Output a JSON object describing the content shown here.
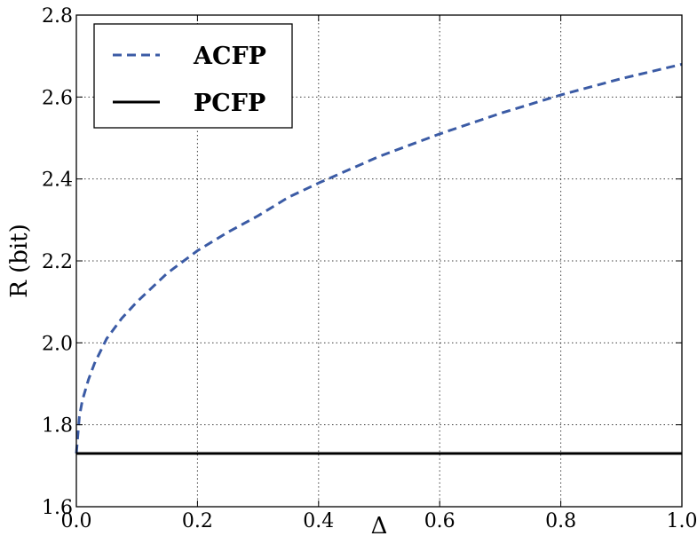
{
  "chart_data": {
    "type": "line",
    "title": "",
    "xlabel": "Δ",
    "ylabel": "R (bit)",
    "xlim": [
      0.0,
      1.0
    ],
    "ylim": [
      1.6,
      2.8
    ],
    "xticks": [
      0.0,
      0.2,
      0.4,
      0.6,
      0.8,
      1.0
    ],
    "xtick_labels": [
      "0.0",
      "0.2",
      "0.4",
      "0.6",
      "0.8",
      "1.0"
    ],
    "yticks": [
      1.6,
      1.8,
      2.0,
      2.2,
      2.4,
      2.6,
      2.8
    ],
    "ytick_labels": [
      "1.6",
      "1.8",
      "2.0",
      "2.2",
      "2.4",
      "2.6",
      "2.8"
    ],
    "grid": true,
    "legend_position": "top-left",
    "series": [
      {
        "name": "ACFP",
        "color": "#3b5ba5",
        "style": "dashed",
        "x": [
          0.0,
          0.005,
          0.01,
          0.02,
          0.03,
          0.05,
          0.075,
          0.1,
          0.15,
          0.2,
          0.25,
          0.3,
          0.35,
          0.4,
          0.5,
          0.6,
          0.7,
          0.8,
          0.9,
          1.0
        ],
        "y": [
          1.73,
          1.82,
          1.86,
          1.91,
          1.95,
          2.01,
          2.06,
          2.1,
          2.17,
          2.225,
          2.27,
          2.31,
          2.355,
          2.39,
          2.455,
          2.51,
          2.56,
          2.605,
          2.645,
          2.68
        ]
      },
      {
        "name": "PCFP",
        "color": "#000000",
        "style": "solid",
        "x": [
          0.0,
          1.0
        ],
        "y": [
          1.73,
          1.73
        ]
      }
    ]
  }
}
